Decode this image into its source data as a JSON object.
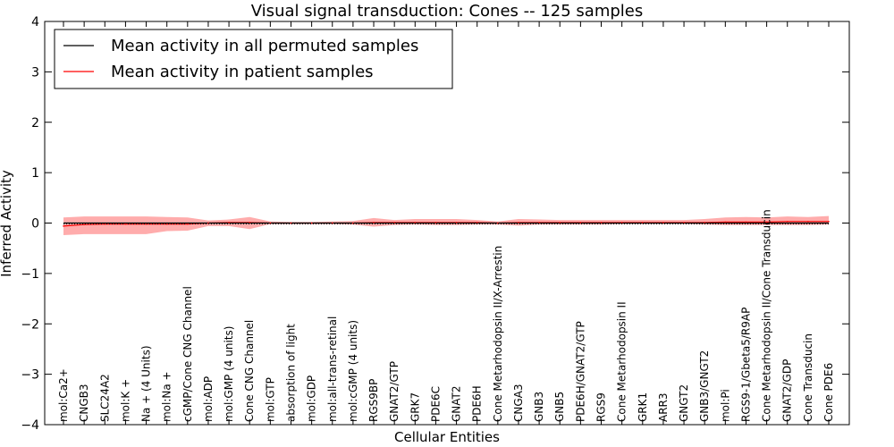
{
  "chart_data": {
    "type": "line",
    "title": "Visual signal transduction: Cones -- 125 samples",
    "xlabel": "Cellular Entities",
    "ylabel": "Inferred Activity",
    "ylim": [
      -4,
      4
    ],
    "yticks": [
      -4,
      -3,
      -2,
      -1,
      0,
      1,
      2,
      3,
      4
    ],
    "legend_position": "top-left",
    "categories": [
      "mol:Ca2+",
      "CNGB3",
      "SLC24A2",
      "mol:K +",
      "Na + (4 Units)",
      "mol:Na +",
      "cGMP/Cone CNG Channel",
      "mol:ADP",
      "mol:GMP (4 units)",
      "Cone CNG Channel",
      "mol:GTP",
      "absorption of light",
      "mol:GDP",
      "mol:all-trans-retinal",
      "mol:cGMP (4 units)",
      "RGS9BP",
      "GNAT2/GTP",
      "GRK7",
      "PDE6C",
      "GNAT2",
      "PDE6H",
      "Cone Metarhodopsin II/X-Arrestin",
      "CNGA3",
      "GNB3",
      "GNB5",
      "PDE6H/GNAT2/GTP",
      "RGS9",
      "Cone Metarhodopsin II",
      "GRK1",
      "ARR3",
      "GNGT2",
      "GNB3/GNGT2",
      "mol:Pi",
      "RGS9-1/Gbeta5/R9AP",
      "Cone Metarhodopsin II/Cone Transducin",
      "GNAT2/GDP",
      "Cone Transducin",
      "Cone PDE6"
    ],
    "series": [
      {
        "name": "Mean activity in all permuted samples",
        "color": "#000000",
        "values": [
          0,
          0,
          0,
          0,
          0,
          0,
          0,
          0,
          0,
          0,
          0,
          0,
          0,
          0,
          0,
          0,
          0,
          0,
          0,
          0,
          0,
          0,
          0,
          0,
          0,
          0,
          0,
          0,
          0,
          0,
          0,
          0,
          0,
          0,
          0,
          0,
          0,
          0
        ],
        "upper": [
          0.02,
          0.02,
          0.02,
          0.02,
          0.02,
          0.02,
          0.02,
          0.02,
          0.02,
          0.02,
          0.02,
          0.02,
          0.02,
          0.02,
          0.02,
          0.02,
          0.02,
          0.02,
          0.02,
          0.02,
          0.02,
          0.02,
          0.02,
          0.02,
          0.02,
          0.02,
          0.02,
          0.02,
          0.02,
          0.02,
          0.02,
          0.02,
          0.02,
          0.02,
          0.02,
          0.02,
          0.02,
          0.02
        ],
        "lower": [
          -0.02,
          -0.02,
          -0.02,
          -0.02,
          -0.02,
          -0.02,
          -0.02,
          -0.02,
          -0.02,
          -0.02,
          -0.02,
          -0.02,
          -0.02,
          -0.02,
          -0.02,
          -0.02,
          -0.02,
          -0.02,
          -0.02,
          -0.02,
          -0.02,
          -0.02,
          -0.02,
          -0.02,
          -0.02,
          -0.02,
          -0.02,
          -0.02,
          -0.02,
          -0.02,
          -0.02,
          -0.02,
          -0.02,
          -0.02,
          -0.02,
          -0.02,
          -0.02,
          -0.02
        ]
      },
      {
        "name": "Mean activity in patient samples",
        "color": "#ff0000",
        "fill": "#ff8080",
        "values": [
          -0.06,
          -0.03,
          -0.02,
          -0.02,
          -0.02,
          -0.02,
          -0.02,
          0,
          0.01,
          0.01,
          0,
          0,
          0,
          0,
          0,
          0.01,
          0.01,
          0.01,
          0.01,
          0.01,
          0.01,
          0,
          0.01,
          0.01,
          0.01,
          0.01,
          0.01,
          0.01,
          0.01,
          0.01,
          0.01,
          0.01,
          0.02,
          0.02,
          0.02,
          0.03,
          0.03,
          0.03
        ],
        "upper": [
          0.11,
          0.13,
          0.13,
          0.13,
          0.13,
          0.12,
          0.11,
          0.05,
          0.07,
          0.12,
          0.03,
          0.02,
          0.02,
          0.03,
          0.04,
          0.1,
          0.06,
          0.08,
          0.08,
          0.08,
          0.06,
          0.03,
          0.08,
          0.07,
          0.06,
          0.06,
          0.06,
          0.06,
          0.06,
          0.06,
          0.06,
          0.08,
          0.11,
          0.12,
          0.11,
          0.13,
          0.12,
          0.14
        ],
        "lower": [
          -0.24,
          -0.22,
          -0.22,
          -0.22,
          -0.22,
          -0.16,
          -0.15,
          -0.06,
          -0.06,
          -0.12,
          -0.02,
          -0.02,
          -0.02,
          -0.02,
          -0.03,
          -0.07,
          -0.04,
          -0.03,
          -0.04,
          -0.04,
          -0.03,
          -0.03,
          -0.05,
          -0.03,
          -0.03,
          -0.03,
          -0.03,
          -0.02,
          -0.02,
          -0.02,
          -0.02,
          -0.03,
          -0.04,
          -0.04,
          -0.04,
          -0.04,
          -0.04,
          -0.03
        ]
      }
    ]
  }
}
